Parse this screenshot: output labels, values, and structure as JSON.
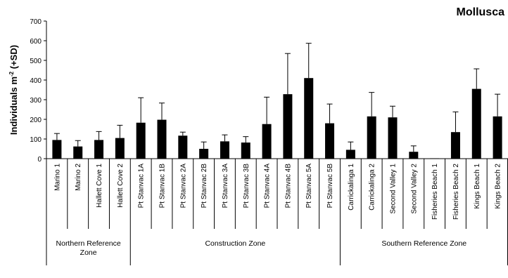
{
  "chart_data": {
    "type": "bar",
    "title": "Mollusca",
    "ylabel_main": "Individuals m",
    "ylabel_sup": "-2",
    "ylabel_tail": " (+SD)",
    "xlabel": "",
    "ylim": [
      0,
      700
    ],
    "yticks": [
      0,
      100,
      200,
      300,
      400,
      500,
      600,
      700
    ],
    "grid": false,
    "legend": "none",
    "bar_color": "#000000",
    "categories": [
      "Marino 1",
      "Marino 2",
      "Hallett Cove 1",
      "Hallett Cove 2",
      "Pt Stanvac 1A",
      "Pt Stanvac 1B",
      "Pt Stanvac 2A",
      "Pt Stanvac 2B",
      "Pt Stanvac 3A",
      "Pt Stanvac 3B",
      "Pt Stanvac 4A",
      "Pt Stanvac 4B",
      "Pt Stanvac 5A",
      "Pt Stanvac 5B",
      "Carrickalinga 1",
      "Carrickalinga 2",
      "Second Valley 1",
      "Second Valley 2",
      "Fisheries Beach 1",
      "Fisheries Beach 2",
      "Kings Beach 1",
      "Kings Beach 2"
    ],
    "values": [
      95,
      62,
      95,
      105,
      183,
      198,
      117,
      50,
      88,
      82,
      176,
      328,
      410,
      180,
      45,
      215,
      210,
      35,
      2,
      135,
      355,
      215
    ],
    "errors": [
      33,
      30,
      43,
      65,
      127,
      85,
      18,
      35,
      33,
      30,
      137,
      207,
      177,
      98,
      40,
      122,
      57,
      30,
      0,
      103,
      102,
      113
    ],
    "groups": [
      {
        "label_lines": [
          "Northern Reference",
          "Zone"
        ],
        "start": 0,
        "end": 3
      },
      {
        "label_lines": [
          "Construction Zone"
        ],
        "start": 4,
        "end": 13
      },
      {
        "label_lines": [
          "Southern Reference Zone"
        ],
        "start": 14,
        "end": 21
      }
    ]
  }
}
